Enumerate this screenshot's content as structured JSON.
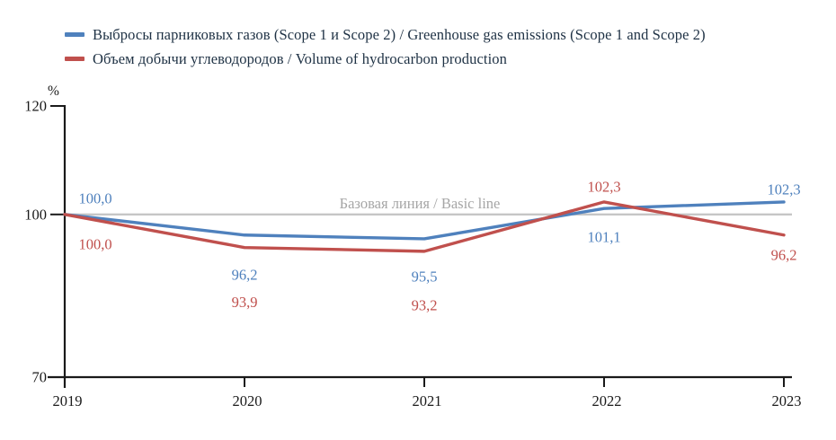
{
  "chart_data": {
    "type": "line",
    "title": "",
    "unit_label": "%",
    "categories": [
      "2019",
      "2020",
      "2021",
      "2022",
      "2023"
    ],
    "series": [
      {
        "name": "Выбросы парниковых газов (Scope 1 и Scope 2) / Greenhouse gas emissions (Scope 1 and Scope 2)",
        "color": "#4F81BD",
        "values": [
          100.0,
          96.2,
          95.5,
          101.1,
          102.3
        ],
        "value_labels": [
          "100,0",
          "96,2",
          "95,5",
          "101,1",
          "102,3"
        ]
      },
      {
        "name": "Объем добычи углеводородов / Volume of hydrocarbon production",
        "color": "#C0504D",
        "values": [
          100.0,
          93.9,
          93.2,
          102.3,
          96.2
        ],
        "value_labels": [
          "100,0",
          "93,9",
          "93,2",
          "102,3",
          "96,2"
        ]
      }
    ],
    "baseline": {
      "value": 100,
      "label": "Базовая линия / Basic line",
      "line_color": "#C6C6C6",
      "label_color": "#A6A6A6"
    },
    "y_axis": {
      "unit": "%",
      "min": 70,
      "max": 120,
      "ticks": [
        120,
        100,
        70
      ]
    },
    "legend_position": "top-left",
    "grid": false,
    "axis_color": "#1a1a1a"
  }
}
